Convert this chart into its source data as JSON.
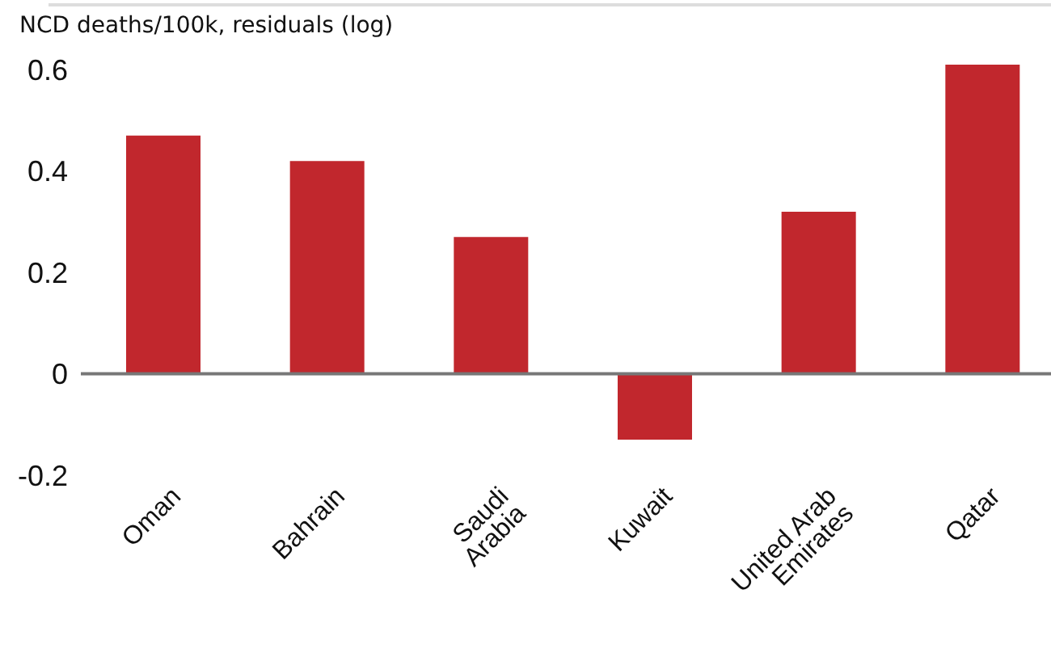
{
  "chart_data": {
    "type": "bar",
    "ylabel": "NCD deaths/100k, residuals (log)",
    "categories": [
      "Oman",
      "Bahrain",
      "Saudi Arabia",
      "Kuwait",
      "United Arab Emirates",
      "Qatar"
    ],
    "values": [
      0.47,
      0.42,
      0.27,
      -0.13,
      0.32,
      0.61
    ],
    "color": "#c1272d",
    "ylim": [
      -0.2,
      0.61
    ],
    "yticks": [
      -0.2,
      0,
      0.2,
      0.4,
      0.6
    ],
    "grid": false,
    "legend": false,
    "ref_lines": [
      {
        "axis": "y",
        "value": 0,
        "color": "#777777"
      }
    ]
  }
}
